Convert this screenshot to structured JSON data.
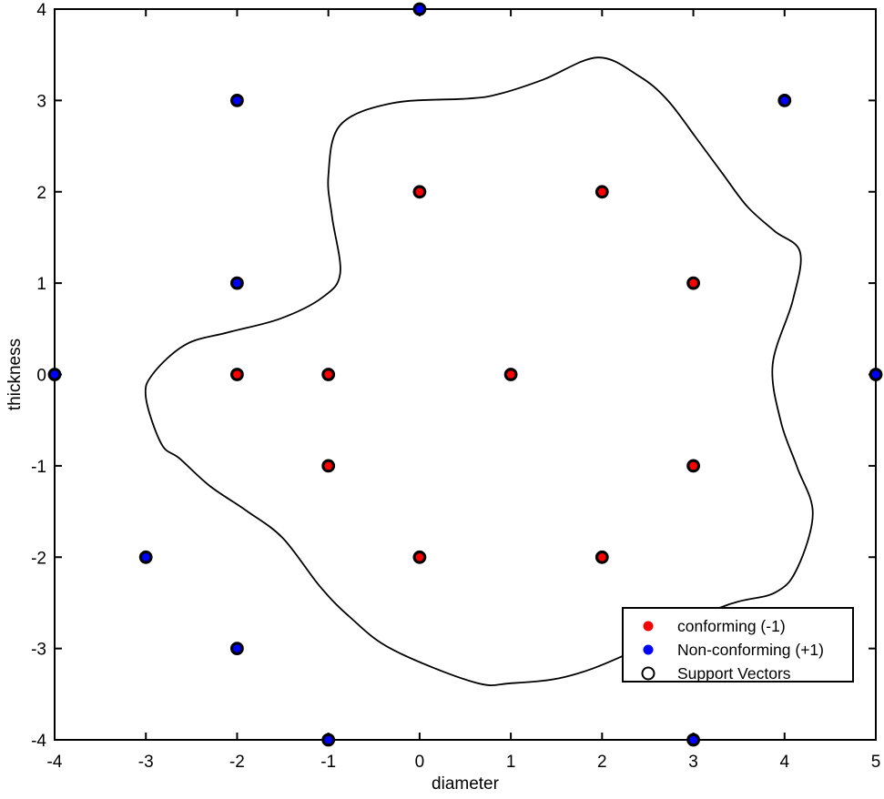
{
  "chart_data": {
    "type": "scatter",
    "title": "",
    "xlabel": "diameter",
    "ylabel": "thickness",
    "xlim": [
      -4,
      5
    ],
    "ylim": [
      -4,
      4
    ],
    "xticks": [
      -4,
      -3,
      -2,
      -1,
      0,
      1,
      2,
      3,
      4,
      5
    ],
    "yticks": [
      -4,
      -3,
      -2,
      -1,
      0,
      1,
      2,
      3,
      4
    ],
    "grid": false,
    "legend_position": "lower-right",
    "series": [
      {
        "name": "conforming (-1)",
        "color": "#ff0000",
        "marker": "filled-circle",
        "points": [
          [
            0,
            2
          ],
          [
            2,
            2
          ],
          [
            3,
            1
          ],
          [
            -2,
            0
          ],
          [
            -1,
            0
          ],
          [
            1,
            0
          ],
          [
            -1,
            -1
          ],
          [
            3,
            -1
          ],
          [
            0,
            -2
          ],
          [
            2,
            -2
          ]
        ]
      },
      {
        "name": "Non-conforming (+1)",
        "color": "#0000ff",
        "marker": "filled-circle",
        "points": [
          [
            0,
            4
          ],
          [
            -2,
            3
          ],
          [
            4,
            3
          ],
          [
            -2,
            1
          ],
          [
            -4,
            0
          ],
          [
            5,
            0
          ],
          [
            -3,
            -2
          ],
          [
            -2,
            -3
          ],
          [
            -1,
            -4
          ],
          [
            3,
            -4
          ]
        ]
      },
      {
        "name": "Support Vectors",
        "color": "#000000",
        "marker": "open-circle",
        "points": [
          [
            0,
            2
          ],
          [
            2,
            2
          ],
          [
            3,
            1
          ],
          [
            -2,
            0
          ],
          [
            -1,
            0
          ],
          [
            1,
            0
          ],
          [
            -1,
            -1
          ],
          [
            3,
            -1
          ],
          [
            0,
            -2
          ],
          [
            2,
            -2
          ],
          [
            0,
            4
          ],
          [
            -2,
            3
          ],
          [
            4,
            3
          ],
          [
            -2,
            1
          ],
          [
            -4,
            0
          ],
          [
            5,
            0
          ],
          [
            -3,
            -2
          ],
          [
            -2,
            -3
          ],
          [
            -1,
            -4
          ],
          [
            3,
            -4
          ]
        ]
      }
    ],
    "decision_boundary": {
      "color": "#000000",
      "closed": true,
      "points": [
        [
          1.95,
          3.47
        ],
        [
          2.4,
          3.27
        ],
        [
          2.72,
          3.0
        ],
        [
          3.06,
          2.55
        ],
        [
          3.32,
          2.2
        ],
        [
          3.59,
          1.84
        ],
        [
          3.89,
          1.57
        ],
        [
          4.17,
          1.34
        ],
        [
          4.09,
          0.81
        ],
        [
          3.87,
          0.11
        ],
        [
          3.96,
          -0.52
        ],
        [
          4.14,
          -1.02
        ],
        [
          4.31,
          -1.52
        ],
        [
          4.14,
          -2.12
        ],
        [
          3.89,
          -2.39
        ],
        [
          3.3,
          -2.55
        ],
        [
          2.23,
          -3.08
        ],
        [
          1.6,
          -3.31
        ],
        [
          1.0,
          -3.38
        ],
        [
          0.6,
          -3.37
        ],
        [
          -0.3,
          -3.01
        ],
        [
          -0.77,
          -2.65
        ],
        [
          -1.1,
          -2.31
        ],
        [
          -1.5,
          -1.79
        ],
        [
          -1.9,
          -1.49
        ],
        [
          -2.3,
          -1.22
        ],
        [
          -2.63,
          -0.92
        ],
        [
          -2.83,
          -0.76
        ],
        [
          -3.0,
          -0.25
        ],
        [
          -2.92,
          0.01
        ],
        [
          -2.56,
          0.33
        ],
        [
          -2.1,
          0.46
        ],
        [
          -1.53,
          0.61
        ],
        [
          -1.07,
          0.84
        ],
        [
          -0.87,
          1.11
        ],
        [
          -0.96,
          1.73
        ],
        [
          -1.0,
          2.18
        ],
        [
          -0.87,
          2.73
        ],
        [
          -0.3,
          2.97
        ],
        [
          0.53,
          3.02
        ],
        [
          0.87,
          3.07
        ],
        [
          1.36,
          3.23
        ]
      ]
    }
  },
  "legend": {
    "items": [
      {
        "label": "conforming (-1)",
        "marker": "filled-circle",
        "color": "#ff0000"
      },
      {
        "label": "Non-conforming (+1)",
        "marker": "filled-circle",
        "color": "#0000ff"
      },
      {
        "label": "Support Vectors",
        "marker": "open-circle",
        "color": "#000000"
      }
    ]
  },
  "colors": {
    "axis": "#000000",
    "background": "#ffffff",
    "conforming": "#ff0000",
    "nonconforming": "#0000ff",
    "boundary": "#000000"
  }
}
